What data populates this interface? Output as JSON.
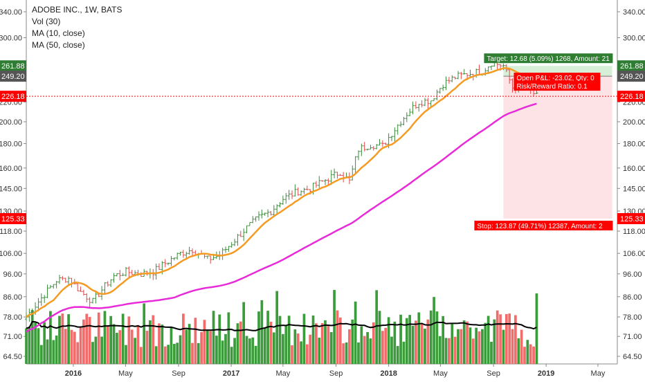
{
  "chart_data": {
    "type": "candlestick",
    "title": "ADOBE INC., 1W, BATS",
    "indicators": [
      "Vol (30)",
      "MA (10, close)",
      "MA (50, close)"
    ],
    "y_scale": "log",
    "y_ticks": [
      "340.00",
      "300.00",
      "261.88",
      "249.20",
      "226.18",
      "220.00",
      "200.00",
      "180.00",
      "160.00",
      "145.00",
      "130.00",
      "125.33",
      "118.00",
      "106.00",
      "96.00",
      "86.00",
      "78.00",
      "71.00",
      "64.50"
    ],
    "y_tick_values": [
      340,
      300,
      220,
      200,
      180,
      160,
      145,
      130,
      118,
      106,
      96,
      86,
      78,
      71,
      64.5
    ],
    "x_ticks": [
      {
        "label": "2016",
        "date": "2016-01-01"
      },
      {
        "label": "May",
        "date": "2016-05-01"
      },
      {
        "label": "Sep",
        "date": "2016-09-01"
      },
      {
        "label": "2017",
        "date": "2017-01-01"
      },
      {
        "label": "May",
        "date": "2017-05-01"
      },
      {
        "label": "Sep",
        "date": "2017-09-01"
      },
      {
        "label": "2018",
        "date": "2018-01-01"
      },
      {
        "label": "May",
        "date": "2018-05-01"
      },
      {
        "label": "Sep",
        "date": "2018-09-01"
      },
      {
        "label": "2019",
        "date": "2019-01-01"
      },
      {
        "label": "May",
        "date": "2019-05-01"
      }
    ],
    "x_range": [
      "2015-09-14",
      "2019-06-15"
    ],
    "price_key_points": [
      [
        "2015-09-14",
        78
      ],
      [
        "2015-10-12",
        84
      ],
      [
        "2015-11-23",
        93
      ],
      [
        "2015-12-21",
        94
      ],
      [
        "2016-01-18",
        88
      ],
      [
        "2016-02-15",
        84
      ],
      [
        "2016-03-07",
        89
      ],
      [
        "2016-04-04",
        95
      ],
      [
        "2016-05-02",
        97
      ],
      [
        "2016-06-06",
        96
      ],
      [
        "2016-07-04",
        97
      ],
      [
        "2016-08-01",
        101
      ],
      [
        "2016-09-05",
        106
      ],
      [
        "2016-10-03",
        108
      ],
      [
        "2016-11-07",
        103
      ],
      [
        "2016-12-05",
        105
      ],
      [
        "2017-01-09",
        113
      ],
      [
        "2017-02-06",
        120
      ],
      [
        "2017-03-06",
        126
      ],
      [
        "2017-04-03",
        130
      ],
      [
        "2017-05-01",
        138
      ],
      [
        "2017-06-05",
        143
      ],
      [
        "2017-07-03",
        145
      ],
      [
        "2017-08-07",
        151
      ],
      [
        "2017-09-11",
        157
      ],
      [
        "2017-10-02",
        150
      ],
      [
        "2017-10-23",
        175
      ],
      [
        "2017-11-20",
        179
      ],
      [
        "2017-12-18",
        178
      ],
      [
        "2018-01-15",
        193
      ],
      [
        "2018-02-12",
        208
      ],
      [
        "2018-03-12",
        220
      ],
      [
        "2018-04-09",
        222
      ],
      [
        "2018-05-07",
        240
      ],
      [
        "2018-06-04",
        248
      ],
      [
        "2018-07-02",
        252
      ],
      [
        "2018-08-06",
        255
      ],
      [
        "2018-08-27",
        266
      ],
      [
        "2018-09-24",
        262
      ],
      [
        "2018-10-15",
        236
      ],
      [
        "2018-10-29",
        240
      ],
      [
        "2018-11-19",
        236
      ],
      [
        "2018-12-10",
        226
      ]
    ],
    "volume_axis_note": "relative volume bars (Vol 30) with moving average",
    "position": {
      "entry_price": 249.2,
      "target_price": 261.88,
      "stop_price": 125.33,
      "current_price": 226.18,
      "start_date": "2018-09-24",
      "end_date": "2019-06-03",
      "target_label": "Target: 12.68 (5.09%) 1268, Amount: 21",
      "stop_label": "Stop: 123.87 (49.71%) 12387, Amount: 2",
      "pnl_label": "Open P&L: -23.02, Qty: 0",
      "rr_label": "Risk/Reward Ratio: 0.1"
    },
    "price_labels": {
      "target": "261.88",
      "entry": "249.20",
      "current": "226.18",
      "stop": "125.33"
    },
    "colors": {
      "up": "#3a8c3a",
      "down": "#e04848",
      "vol_up": "#3c9c3c",
      "vol_down": "#f36c6c",
      "ma10": "#f59a23",
      "ma50": "#e82ad8",
      "vol_ma": "#000000",
      "target": "#2e7d32",
      "entry": "#555555",
      "stop": "#ff0000",
      "current": "#ff0000",
      "stop_zone": "#fde2e6"
    }
  }
}
